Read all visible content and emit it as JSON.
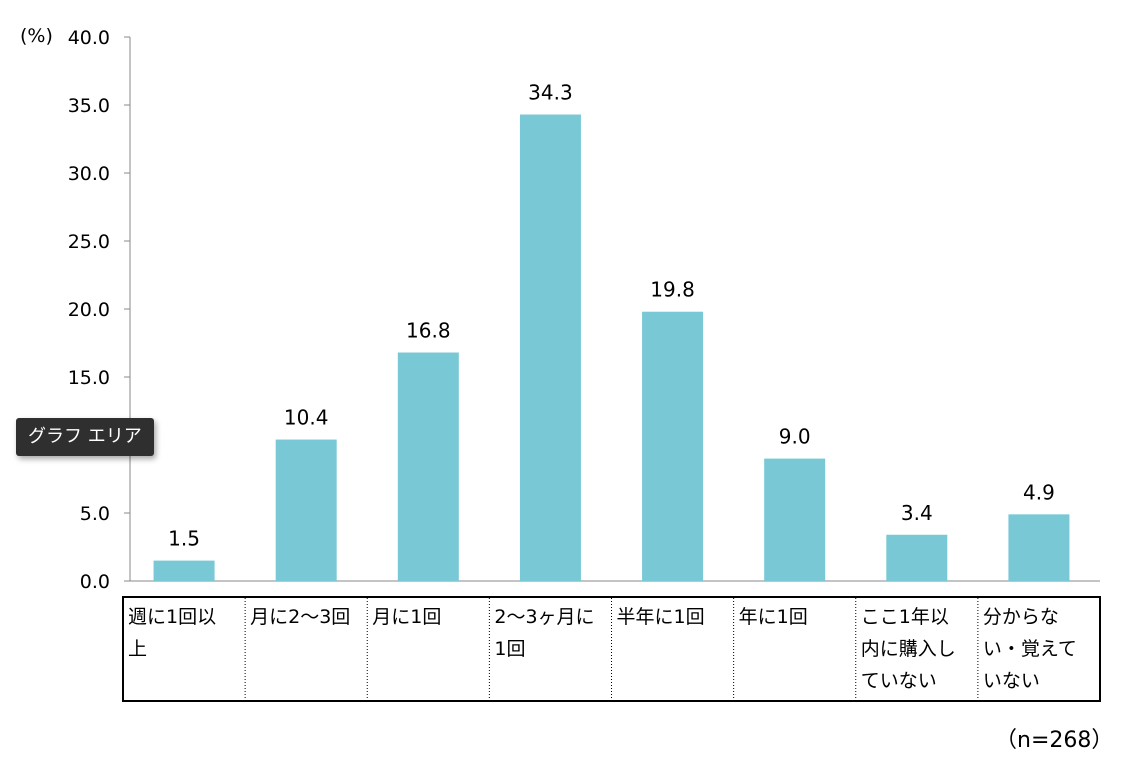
{
  "chart_data": {
    "type": "bar",
    "title": "",
    "xlabel": "",
    "ylabel": "",
    "unit_label": "(%)",
    "ylim": [
      0,
      40
    ],
    "ytick_step": 5,
    "yticks": [
      "0.0",
      "5.0",
      "10.0",
      "15.0",
      "20.0",
      "25.0",
      "30.0",
      "35.0",
      "40.0"
    ],
    "categories": [
      "週に1回以上",
      "月に2〜3回",
      "月に1回",
      "2〜3ヶ月に1回",
      "半年に1回",
      "年に1回",
      "ここ1年以内に購入していない",
      "分からない・覚えていない"
    ],
    "category_lines": [
      [
        "週に1回以",
        "上"
      ],
      [
        "月に2〜3回"
      ],
      [
        "月に1回"
      ],
      [
        "2〜3ヶ月に",
        "1回"
      ],
      [
        "半年に1回"
      ],
      [
        "年に1回"
      ],
      [
        "ここ1年以",
        "内に購入し",
        "ていない"
      ],
      [
        "分からな",
        "い・覚えて",
        "いない"
      ]
    ],
    "values": [
      1.5,
      10.4,
      16.8,
      34.3,
      19.8,
      9.0,
      3.4,
      4.9
    ],
    "value_labels": [
      "1.5",
      "10.4",
      "16.8",
      "34.3",
      "19.8",
      "9.0",
      "3.4",
      "4.9"
    ],
    "bar_color": "#78c9d5",
    "grid": false,
    "legend": "none",
    "sample_note": "（n=268）"
  },
  "tooltip": {
    "text": "グラフ エリア"
  }
}
